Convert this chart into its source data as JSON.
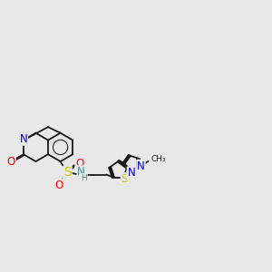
{
  "bg_color": "#e8e8e8",
  "bond_color": "#1a1a1a",
  "lw": 1.3,
  "doff": 0.028,
  "colors": {
    "O": "#ff0000",
    "N": "#0000cc",
    "S": "#c8c800",
    "NH": "#3d9a9a",
    "H": "#3d9a9a",
    "C": "#1a1a1a"
  },
  "fs": 8.5,
  "fs_small": 6.5
}
